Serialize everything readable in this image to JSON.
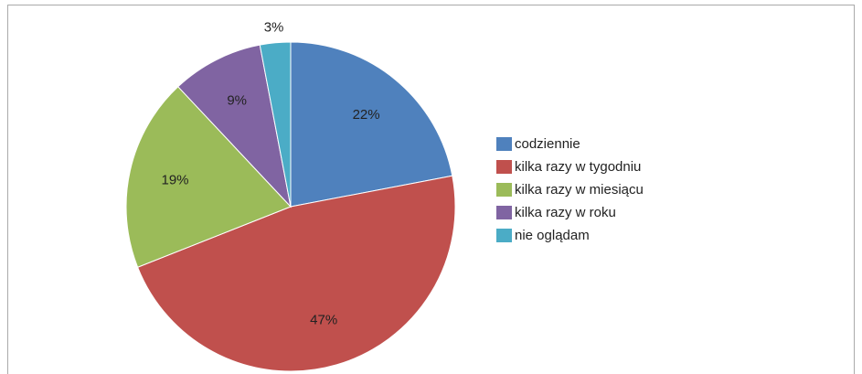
{
  "chart_data": {
    "type": "pie",
    "categories": [
      "codziennie",
      "kilka razy w tygodniu",
      "kilka razy w miesiącu",
      "kilka razy w roku",
      "nie oglądam"
    ],
    "values": [
      22,
      47,
      19,
      9,
      3
    ],
    "value_labels": [
      "22%",
      "47%",
      "19%",
      "9%",
      "3%"
    ],
    "colors": [
      "#4f81bd",
      "#c0504d",
      "#9bbb59",
      "#8064a2",
      "#4bacc6"
    ],
    "legend": "right"
  }
}
